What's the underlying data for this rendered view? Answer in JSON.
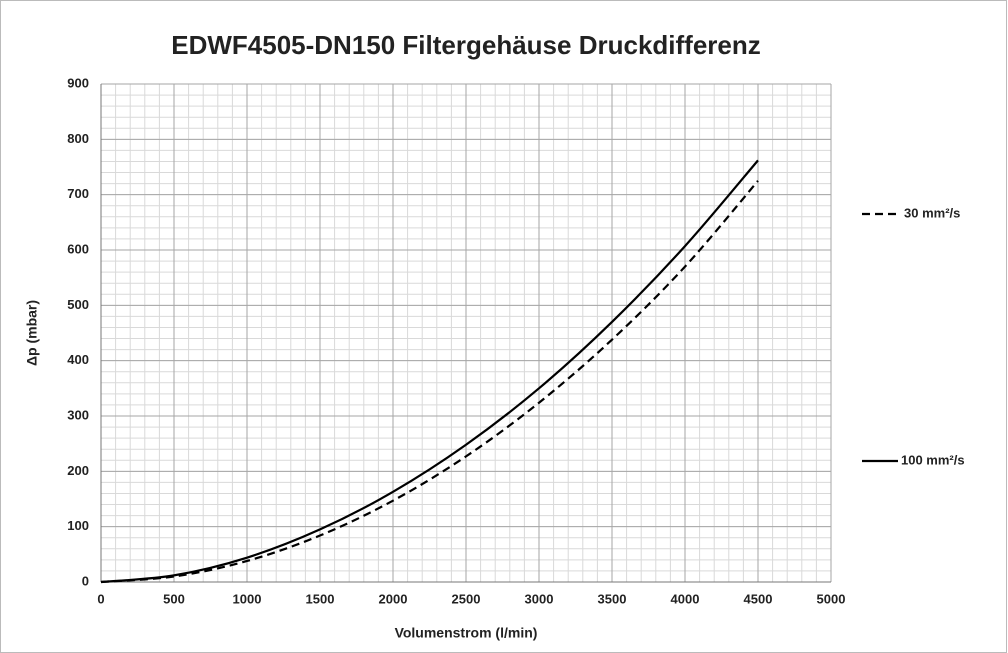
{
  "chart_data": {
    "type": "line",
    "title": "EDWF4505-DN150 Filtergehäuse Druckdifferenz",
    "xlabel": "Volumenstrom (l/min)",
    "ylabel": "Δp (mbar)",
    "x": [
      0,
      500,
      1000,
      1500,
      2000,
      2500,
      3000,
      3500,
      4000,
      4500
    ],
    "series": [
      {
        "name": "30 mm²/s",
        "color": "#000000",
        "dash": true,
        "values": [
          0,
          10,
          38,
          84,
          147,
          227,
          324,
          438,
          570,
          725
        ]
      },
      {
        "name": "100 mm²/s",
        "color": "#000000",
        "dash": false,
        "values": [
          0,
          12,
          44,
          95,
          163,
          248,
          350,
          470,
          607,
          762
        ]
      }
    ],
    "xlim": [
      0,
      5000
    ],
    "xticks": [
      0,
      500,
      1000,
      1500,
      2000,
      2500,
      3000,
      3500,
      4000,
      4500,
      5000
    ],
    "ylim": [
      0,
      900
    ],
    "yticks": [
      0,
      100,
      200,
      300,
      400,
      500,
      600,
      700,
      800,
      900
    ],
    "grid": true,
    "minor_grid": {
      "x": 100,
      "y": 20
    },
    "legend": "right"
  }
}
